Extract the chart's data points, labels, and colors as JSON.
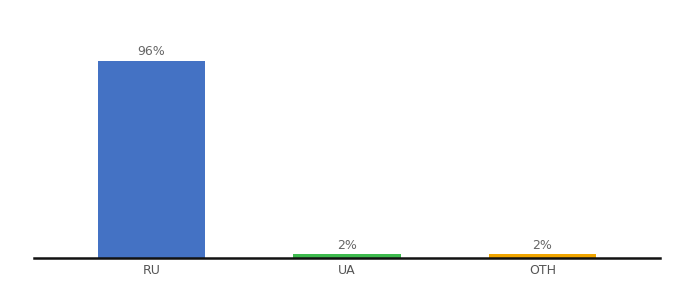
{
  "categories": [
    "RU",
    "UA",
    "OTH"
  ],
  "values": [
    96,
    2,
    2
  ],
  "bar_colors": [
    "#4472c4",
    "#3dba4e",
    "#f0a500"
  ],
  "label_texts": [
    "96%",
    "2%",
    "2%"
  ],
  "ylim": [
    0,
    108
  ],
  "bar_width": 0.55,
  "background_color": "#ffffff",
  "axis_label_color": "#555555",
  "value_label_color": "#666666",
  "label_fontsize": 9,
  "tick_fontsize": 9
}
